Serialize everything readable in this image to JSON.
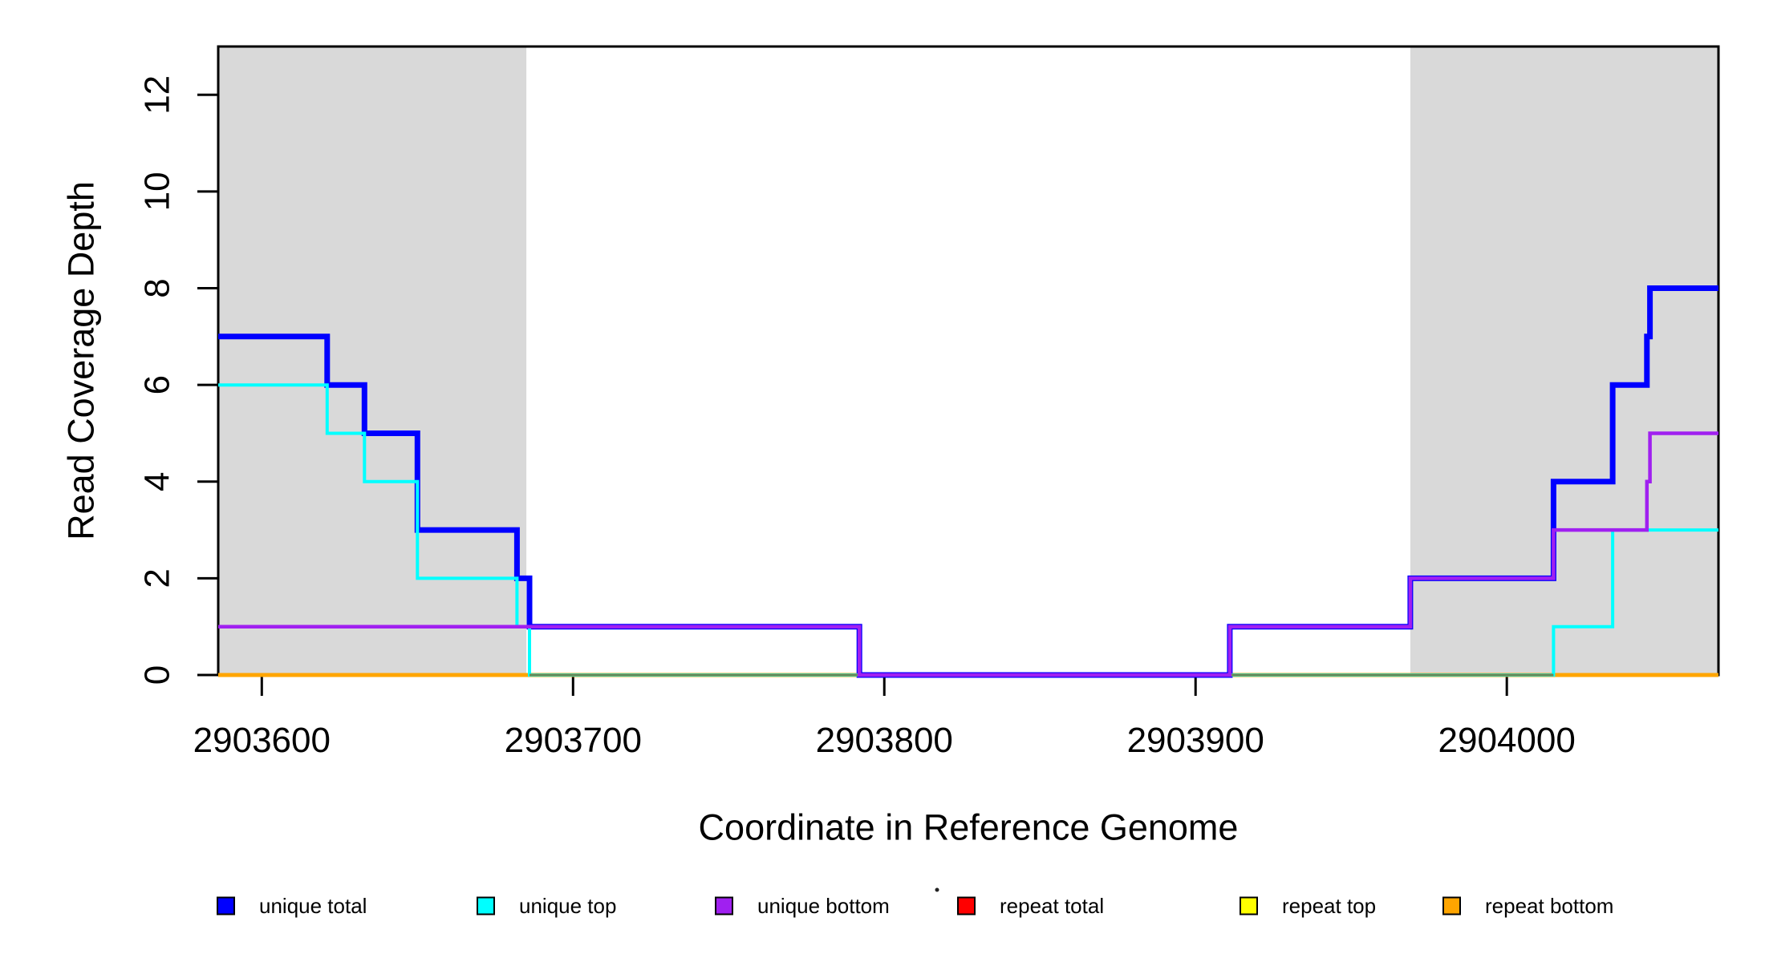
{
  "figure": {
    "background": "#FFFFFF",
    "frame_color": "#000000",
    "shaded_region_color": "#D9D9D9"
  },
  "chart_data": {
    "type": "line",
    "subtype": "step",
    "title": "",
    "xlabel": "Coordinate in Reference Genome",
    "ylabel": "Read Coverage Depth",
    "xlim": [
      2903586,
      2904068
    ],
    "ylim": [
      0,
      13
    ],
    "xticks": [
      2903600,
      2903700,
      2903800,
      2903900,
      2904000
    ],
    "yticks": [
      0,
      2,
      4,
      6,
      8,
      10,
      12
    ],
    "grid": false,
    "legend_position": "bottom",
    "shaded_regions": [
      {
        "from": 2903586,
        "to": 2903685
      },
      {
        "from": 2903969,
        "to": 2904068
      }
    ],
    "series": [
      {
        "name": "unique total",
        "color": "#0000FF",
        "width": 7,
        "z": 4,
        "steps": [
          [
            2903586,
            7
          ],
          [
            2903621,
            6
          ],
          [
            2903633,
            5
          ],
          [
            2903650,
            3
          ],
          [
            2903682,
            2
          ],
          [
            2903686,
            1
          ],
          [
            2903792,
            0
          ],
          [
            2903911,
            1
          ],
          [
            2903969,
            2
          ],
          [
            2904015,
            4
          ],
          [
            2904034,
            6
          ],
          [
            2904045,
            7
          ],
          [
            2904046,
            8
          ],
          [
            2904068,
            8
          ]
        ]
      },
      {
        "name": "unique top",
        "color": "#00FFFF",
        "width": 4,
        "z": 5,
        "steps": [
          [
            2903586,
            6
          ],
          [
            2903621,
            5
          ],
          [
            2903633,
            4
          ],
          [
            2903650,
            2
          ],
          [
            2903682,
            1
          ],
          [
            2903686,
            0
          ],
          [
            2904015,
            1
          ],
          [
            2904034,
            3
          ],
          [
            2904068,
            3
          ]
        ]
      },
      {
        "name": "unique bottom",
        "color": "#A020F0",
        "width": 4.5,
        "z": 7,
        "steps": [
          [
            2903586,
            1
          ],
          [
            2903792,
            0
          ],
          [
            2903911,
            1
          ],
          [
            2903969,
            2
          ],
          [
            2904015,
            3
          ],
          [
            2904045,
            4
          ],
          [
            2904046,
            5
          ],
          [
            2904068,
            5
          ]
        ]
      },
      {
        "name": "repeat total",
        "color": "#FF0000",
        "width": 4,
        "z": 1,
        "steps": [
          [
            2903586,
            0
          ],
          [
            2904068,
            0
          ]
        ]
      },
      {
        "name": "repeat top",
        "color": "#FFFF00",
        "width": 4,
        "z": 2,
        "steps": [
          [
            2903586,
            0
          ],
          [
            2904068,
            0
          ]
        ]
      },
      {
        "name": "repeat bottom",
        "color": "#FFA500",
        "width": 5,
        "z": 3,
        "steps": [
          [
            2903586,
            0
          ],
          [
            2904068,
            0
          ]
        ]
      }
    ],
    "blend_overlays": [
      {
        "from": 2903686,
        "to": 2904015,
        "level": 0,
        "color": "#75844E",
        "width": 3,
        "z": 6
      }
    ]
  },
  "legend": {
    "items": [
      {
        "label": "unique total",
        "color": "#0000FF"
      },
      {
        "label": "unique top",
        "color": "#00FFFF"
      },
      {
        "label": "unique bottom",
        "color": "#A020F0"
      },
      {
        "label": "repeat total",
        "color": "#FF0000"
      },
      {
        "label": "repeat top",
        "color": "#FFFF00"
      },
      {
        "label": "repeat bottom",
        "color": "#FFA500"
      }
    ]
  }
}
